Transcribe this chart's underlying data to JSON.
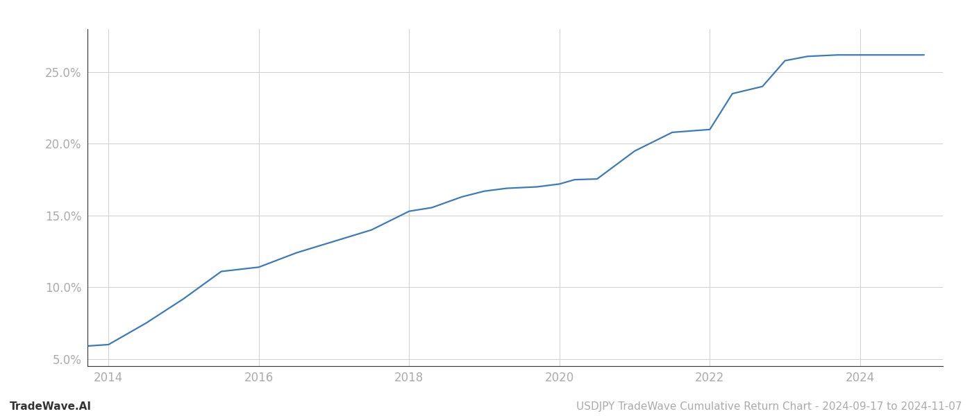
{
  "title": "",
  "footer_left": "TradeWave.AI",
  "footer_right": "USDJPY TradeWave Cumulative Return Chart - 2024-09-17 to 2024-11-07",
  "line_color": "#3a7abf",
  "background_color": "#ffffff",
  "grid_color": "#d0d0d0",
  "x_years": [
    2013.72,
    2014.0,
    2014.5,
    2015.0,
    2015.5,
    2016.0,
    2016.5,
    2017.0,
    2017.5,
    2018.0,
    2018.3,
    2018.7,
    2019.0,
    2019.3,
    2019.7,
    2020.0,
    2020.2,
    2020.5,
    2021.0,
    2021.5,
    2022.0,
    2022.3,
    2022.7,
    2023.0,
    2023.3,
    2023.7,
    2024.0,
    2024.85
  ],
  "y_values": [
    5.9,
    6.0,
    7.5,
    9.2,
    11.1,
    11.4,
    12.4,
    13.2,
    14.0,
    15.3,
    15.55,
    16.3,
    16.7,
    16.9,
    17.0,
    17.2,
    17.5,
    17.55,
    19.5,
    20.8,
    21.0,
    23.5,
    24.0,
    25.8,
    26.1,
    26.2,
    26.2,
    26.2
  ],
  "xlim": [
    2013.72,
    2025.1
  ],
  "ylim": [
    4.5,
    28.0
  ],
  "yticks": [
    5.0,
    10.0,
    15.0,
    20.0,
    25.0
  ],
  "xticks": [
    2014,
    2016,
    2018,
    2020,
    2022,
    2024
  ],
  "line_width": 1.6,
  "tick_label_color": "#aaaaaa",
  "tick_label_fontsize": 12,
  "footer_fontsize": 11,
  "spine_color": "#333333"
}
